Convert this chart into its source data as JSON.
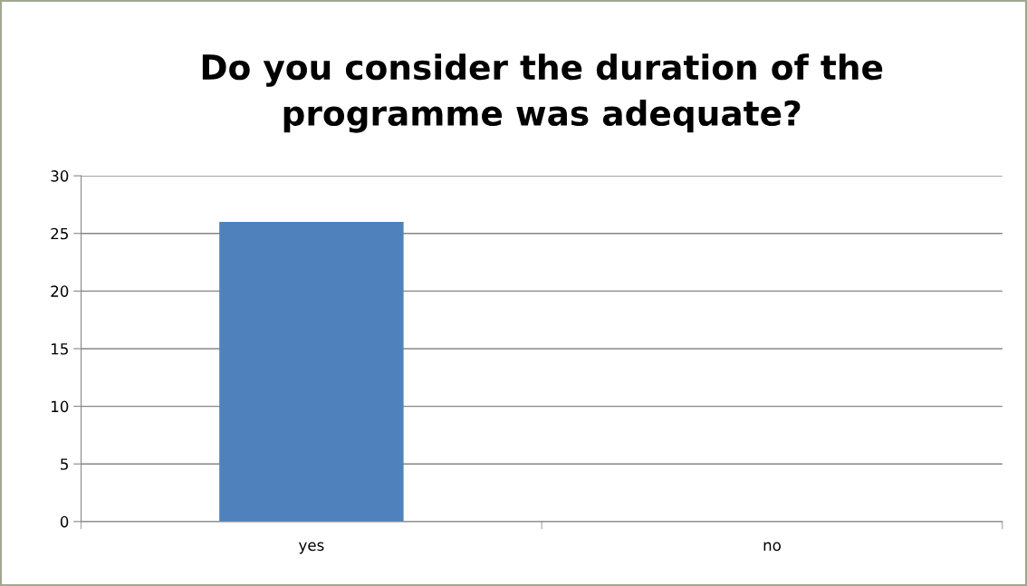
{
  "chart_data": {
    "type": "bar",
    "title": "Do you consider the duration of the\nprogramme was adequate?",
    "categories": [
      "yes",
      "no"
    ],
    "series": [
      {
        "color": "#4f81bd",
        "values": [
          26,
          0
        ]
      }
    ],
    "ylim": [
      0,
      30
    ],
    "yticks": [
      0,
      5,
      10,
      15,
      20,
      25,
      30
    ],
    "grid": "y",
    "legend": false
  }
}
